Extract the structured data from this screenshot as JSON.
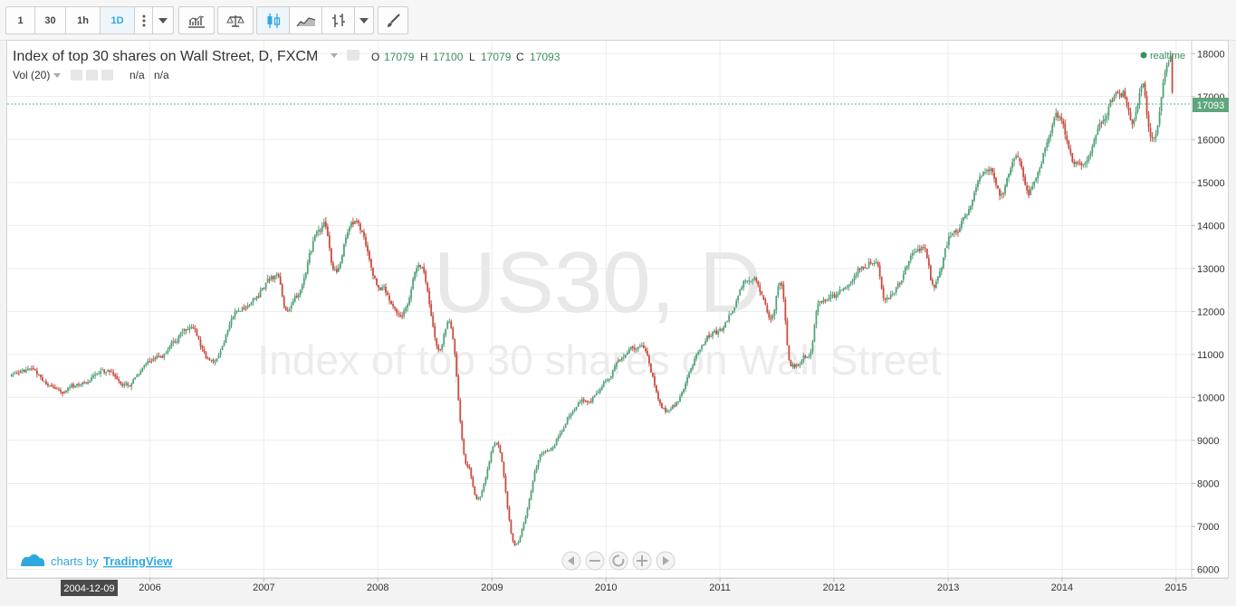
{
  "toolbar": {
    "intervals": [
      "1",
      "30",
      "1h",
      "1D"
    ],
    "active_interval": "1D"
  },
  "legend": {
    "title": "Index of top 30 shares on Wall Street, D, FXCM",
    "o_label": "O",
    "o_value": "17079",
    "h_label": "H",
    "h_value": "17100",
    "l_label": "L",
    "l_value": "17079",
    "c_label": "C",
    "c_value": "17093",
    "vol_label": "Vol (20)",
    "vol_values": [
      "n/a",
      "n/a"
    ],
    "realtime": "realtime"
  },
  "watermark": {
    "symbol": "US30, D",
    "description": "Index of top 30 shares on Wall Street"
  },
  "branding": {
    "prefix": "charts by",
    "link": "TradingView"
  },
  "crosshair_date": "2004-12-09",
  "price_tag": "17093",
  "colors": {
    "up": "#53a17a",
    "down": "#c94c3f",
    "accent": "#2fa8e0",
    "tag": "#5fa67d"
  },
  "chart_data": {
    "type": "candlestick",
    "symbol": "US30",
    "interval": "D",
    "x_ticks": [
      "2006",
      "2007",
      "2008",
      "2009",
      "2010",
      "2011",
      "2012",
      "2013",
      "2014",
      "2015"
    ],
    "y_ticks": [
      6000,
      7000,
      8000,
      9000,
      10000,
      11000,
      12000,
      13000,
      14000,
      15000,
      16000,
      17000,
      18000
    ],
    "ylim": [
      5800,
      18300
    ],
    "xlim": [
      "2004-10-01",
      "2015-02-20"
    ],
    "last_close": 17093,
    "series": [
      {
        "name": "US30",
        "points": [
          [
            "2004-10",
            10500
          ],
          [
            "2004-12",
            10650
          ],
          [
            "2005-03",
            10150
          ],
          [
            "2005-05",
            10300
          ],
          [
            "2005-08",
            10600
          ],
          [
            "2005-10",
            10250
          ],
          [
            "2006-01",
            10900
          ],
          [
            "2006-05",
            11600
          ],
          [
            "2006-07",
            10800
          ],
          [
            "2006-10",
            12000
          ],
          [
            "2007-02",
            12800
          ],
          [
            "2007-03",
            12000
          ],
          [
            "2007-07",
            14000
          ],
          [
            "2007-08",
            12900
          ],
          [
            "2007-10",
            14100
          ],
          [
            "2008-01",
            12500
          ],
          [
            "2008-03",
            11900
          ],
          [
            "2008-05",
            13100
          ],
          [
            "2008-07",
            11100
          ],
          [
            "2008-08",
            11700
          ],
          [
            "2008-10",
            8400
          ],
          [
            "2008-11",
            7600
          ],
          [
            "2009-01",
            9000
          ],
          [
            "2009-03",
            6600
          ],
          [
            "2009-06",
            8700
          ],
          [
            "2009-10",
            9900
          ],
          [
            "2010-04",
            11200
          ],
          [
            "2010-07",
            9700
          ],
          [
            "2010-12",
            11500
          ],
          [
            "2011-04",
            12800
          ],
          [
            "2011-06",
            11900
          ],
          [
            "2011-07",
            12700
          ],
          [
            "2011-08",
            10700
          ],
          [
            "2011-10",
            11000
          ],
          [
            "2011-11",
            12200
          ],
          [
            "2012-05",
            13200
          ],
          [
            "2012-06",
            12300
          ],
          [
            "2012-10",
            13500
          ],
          [
            "2012-11",
            12600
          ],
          [
            "2013-01",
            13800
          ],
          [
            "2013-05",
            15400
          ],
          [
            "2013-06",
            14700
          ],
          [
            "2013-08",
            15600
          ],
          [
            "2013-09",
            14800
          ],
          [
            "2013-12",
            16500
          ],
          [
            "2014-02",
            15400
          ],
          [
            "2014-07",
            17100
          ],
          [
            "2014-08",
            16400
          ],
          [
            "2014-09",
            17300
          ],
          [
            "2014-10",
            15900
          ],
          [
            "2014-12",
            17900
          ],
          [
            "2014-12-20",
            17093
          ]
        ]
      }
    ]
  }
}
